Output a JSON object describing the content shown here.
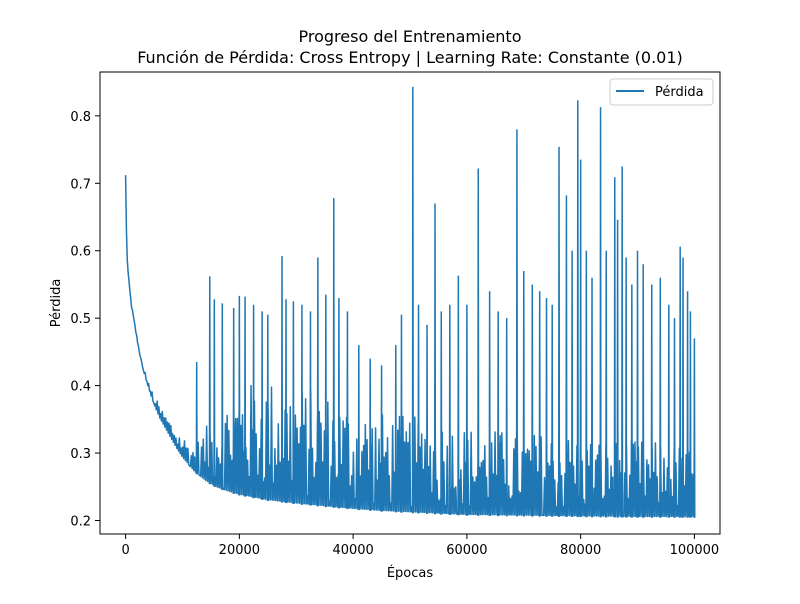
{
  "chart_data": {
    "type": "line",
    "title": "Progreso del Entrenamiento",
    "subtitle": "Función de Pérdida: Cross Entropy | Learning Rate: Constante (0.01)",
    "xlabel": "Épocas",
    "ylabel": "Pérdida",
    "xlim": [
      -4500,
      104500
    ],
    "ylim": [
      0.18,
      0.865
    ],
    "xticks": [
      0,
      20000,
      40000,
      60000,
      80000,
      100000
    ],
    "xtick_labels": [
      "0",
      "20000",
      "40000",
      "60000",
      "80000",
      "100000"
    ],
    "yticks": [
      0.2,
      0.3,
      0.4,
      0.5,
      0.6,
      0.7,
      0.8
    ],
    "ytick_labels": [
      "0.2",
      "0.3",
      "0.4",
      "0.5",
      "0.6",
      "0.7",
      "0.8"
    ],
    "grid": false,
    "legend_position": "upper right",
    "line_color": "#1f77b4",
    "series": [
      {
        "name": "Pérdida",
        "color": "#1f77b4",
        "baseline": {
          "x": [
            0,
            200,
            500,
            1000,
            2000,
            3000,
            4000,
            5000,
            6000,
            7000,
            8000,
            9000,
            10000,
            12000,
            14000,
            16000,
            18000,
            20000,
            25000,
            30000,
            35000,
            40000,
            45000,
            50000,
            55000,
            60000,
            70000,
            80000,
            90000,
            100000
          ],
          "y": [
            0.712,
            0.6,
            0.56,
            0.52,
            0.47,
            0.425,
            0.395,
            0.37,
            0.35,
            0.335,
            0.32,
            0.305,
            0.292,
            0.272,
            0.258,
            0.248,
            0.242,
            0.237,
            0.229,
            0.224,
            0.22,
            0.216,
            0.213,
            0.211,
            0.209,
            0.207,
            0.206,
            0.205,
            0.204,
            0.204
          ]
        },
        "band_top": {
          "x": [
            3000,
            6000,
            9000,
            12000,
            15000,
            18000,
            20000,
            25000,
            30000,
            35000,
            40000,
            45000,
            50000,
            55000,
            60000,
            65000,
            70000,
            75000,
            80000,
            85000,
            90000,
            95000,
            100000
          ],
          "y": [
            0.42,
            0.37,
            0.335,
            0.31,
            0.35,
            0.38,
            0.4,
            0.41,
            0.4,
            0.39,
            0.37,
            0.36,
            0.355,
            0.35,
            0.34,
            0.335,
            0.33,
            0.33,
            0.325,
            0.32,
            0.32,
            0.315,
            0.31
          ]
        },
        "spikes": [
          [
            12500,
            0.435
          ],
          [
            14800,
            0.562
          ],
          [
            15600,
            0.528
          ],
          [
            17000,
            0.522
          ],
          [
            19000,
            0.515
          ],
          [
            20000,
            0.533
          ],
          [
            21000,
            0.532
          ],
          [
            22500,
            0.52
          ],
          [
            24000,
            0.51
          ],
          [
            25000,
            0.505
          ],
          [
            27500,
            0.592
          ],
          [
            28200,
            0.528
          ],
          [
            29500,
            0.525
          ],
          [
            31000,
            0.52
          ],
          [
            32500,
            0.51
          ],
          [
            33800,
            0.59
          ],
          [
            35200,
            0.535
          ],
          [
            36600,
            0.678
          ],
          [
            37500,
            0.53
          ],
          [
            39000,
            0.51
          ],
          [
            41000,
            0.46
          ],
          [
            43000,
            0.44
          ],
          [
            45000,
            0.43
          ],
          [
            47500,
            0.46
          ],
          [
            48500,
            0.505
          ],
          [
            50500,
            0.843
          ],
          [
            51500,
            0.52
          ],
          [
            53000,
            0.49
          ],
          [
            54400,
            0.67
          ],
          [
            55500,
            0.51
          ],
          [
            57000,
            0.52
          ],
          [
            58500,
            0.563
          ],
          [
            60000,
            0.52
          ],
          [
            62000,
            0.722
          ],
          [
            64000,
            0.54
          ],
          [
            65500,
            0.51
          ],
          [
            67000,
            0.5
          ],
          [
            68800,
            0.78
          ],
          [
            70000,
            0.57
          ],
          [
            71500,
            0.55
          ],
          [
            72800,
            0.54
          ],
          [
            74000,
            0.53
          ],
          [
            75000,
            0.52
          ],
          [
            76200,
            0.754
          ],
          [
            77500,
            0.682
          ],
          [
            78500,
            0.6
          ],
          [
            79500,
            0.823
          ],
          [
            80000,
            0.735
          ],
          [
            81000,
            0.6
          ],
          [
            82000,
            0.56
          ],
          [
            83500,
            0.813
          ],
          [
            84500,
            0.6
          ],
          [
            86000,
            0.709
          ],
          [
            86500,
            0.646
          ],
          [
            87300,
            0.725
          ],
          [
            88000,
            0.59
          ],
          [
            89000,
            0.55
          ],
          [
            90000,
            0.6
          ],
          [
            91000,
            0.58
          ],
          [
            92500,
            0.55
          ],
          [
            94000,
            0.56
          ],
          [
            95500,
            0.52
          ],
          [
            96500,
            0.5
          ],
          [
            97500,
            0.606
          ],
          [
            98000,
            0.59
          ],
          [
            98800,
            0.54
          ],
          [
            99300,
            0.51
          ],
          [
            100000,
            0.47
          ]
        ]
      }
    ]
  }
}
